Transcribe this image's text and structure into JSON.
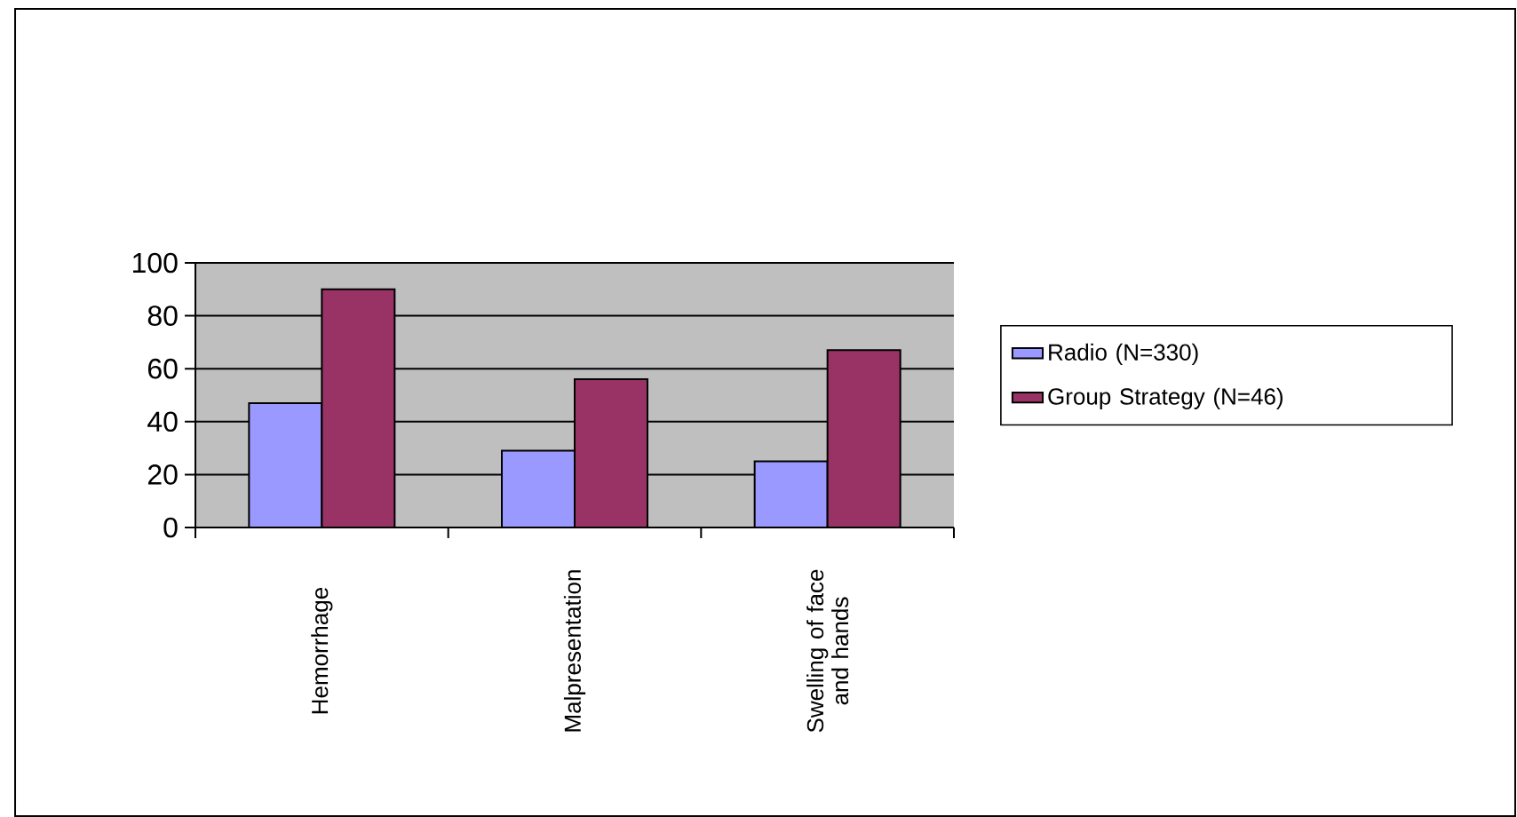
{
  "chart_data": {
    "type": "bar",
    "categories": [
      "Hemorrhage",
      "Malpresentation",
      "Swelling of face and hands"
    ],
    "series": [
      {
        "name": "Radio (N=330)",
        "color": "#9999ff",
        "values": [
          47,
          29,
          25
        ]
      },
      {
        "name": "Group Strategy (N=46)",
        "color": "#993366",
        "values": [
          90,
          56,
          67
        ]
      }
    ],
    "ylim": [
      0,
      100
    ],
    "yticks": [
      0,
      20,
      40,
      60,
      80,
      100
    ],
    "grid": "y",
    "legend": "right"
  }
}
